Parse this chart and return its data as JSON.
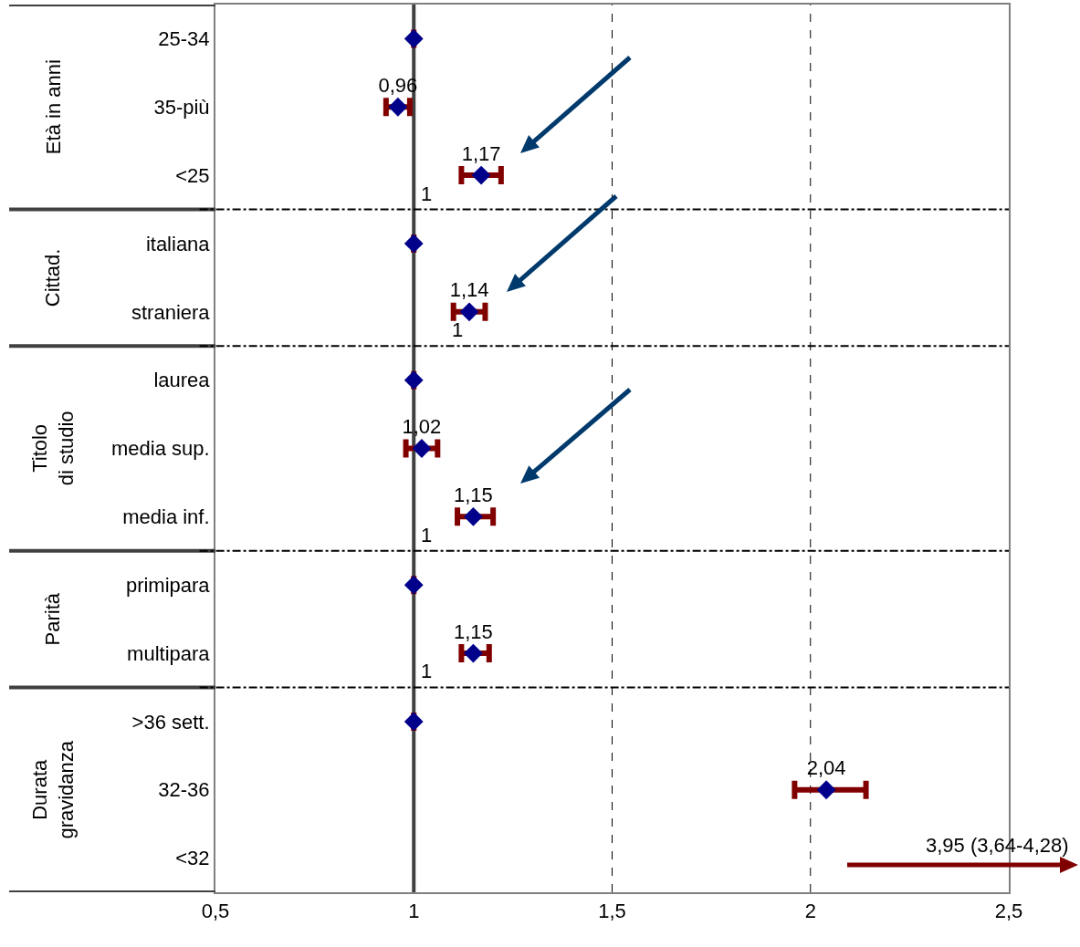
{
  "chart_data": {
    "type": "scatter",
    "categories": [
      "25-34",
      "35-più",
      "<25",
      "italiana",
      "straniera",
      "laurea",
      "media sup.",
      "media inf.",
      "primipara",
      "multipara",
      ">36 sett.",
      "32-36",
      "<32"
    ],
    "series": [
      {
        "color": "#00008b",
        "values": [
          1,
          0.96,
          1.17,
          1,
          1.14,
          1,
          1.02,
          1.15,
          1,
          1.15,
          1,
          2.04,
          null
        ],
        "errors": [
          [
            1,
            1
          ],
          [
            0.93,
            0.99
          ],
          [
            1.12,
            1.22
          ],
          [
            1,
            1
          ],
          [
            1.1,
            1.18
          ],
          [
            1,
            1
          ],
          [
            0.98,
            1.06
          ],
          [
            1.11,
            1.2
          ],
          [
            1,
            1
          ],
          [
            1.12,
            1.19
          ],
          [
            1,
            1
          ],
          [
            1.96,
            2.14
          ],
          null
        ],
        "value_labels": [
          null,
          "0,96",
          "1,17",
          null,
          "1,14",
          null,
          "1,02",
          "1,15",
          null,
          "1,15",
          null,
          "2,04",
          null
        ]
      }
    ],
    "orientation": "horizontal",
    "xlim": [
      0.5,
      2.5
    ],
    "xticks": [
      {
        "value": 0.5,
        "label": "0,5"
      },
      1,
      {
        "value": 1.5,
        "label": "1,5"
      },
      2,
      {
        "value": 2.5,
        "label": "2,5"
      }
    ],
    "marker": "diamond",
    "ref_lines": [
      {
        "axis": "x",
        "value": 1,
        "color": "#404040",
        "line_style": "solid"
      },
      {
        "axis": "x",
        "value": 1.5,
        "color": "#000000",
        "line_style": "dashed"
      },
      {
        "axis": "x",
        "value": 2,
        "color": "#000000",
        "line_style": "dashed"
      }
    ],
    "annotations": [
      "Età in anni",
      "Cittad.",
      "Titolo\ndi studio",
      "Parità",
      "Durata\ngravidanza",
      "1",
      "1",
      "1",
      "1",
      "3,95 (3,64-4,28)"
    ]
  }
}
